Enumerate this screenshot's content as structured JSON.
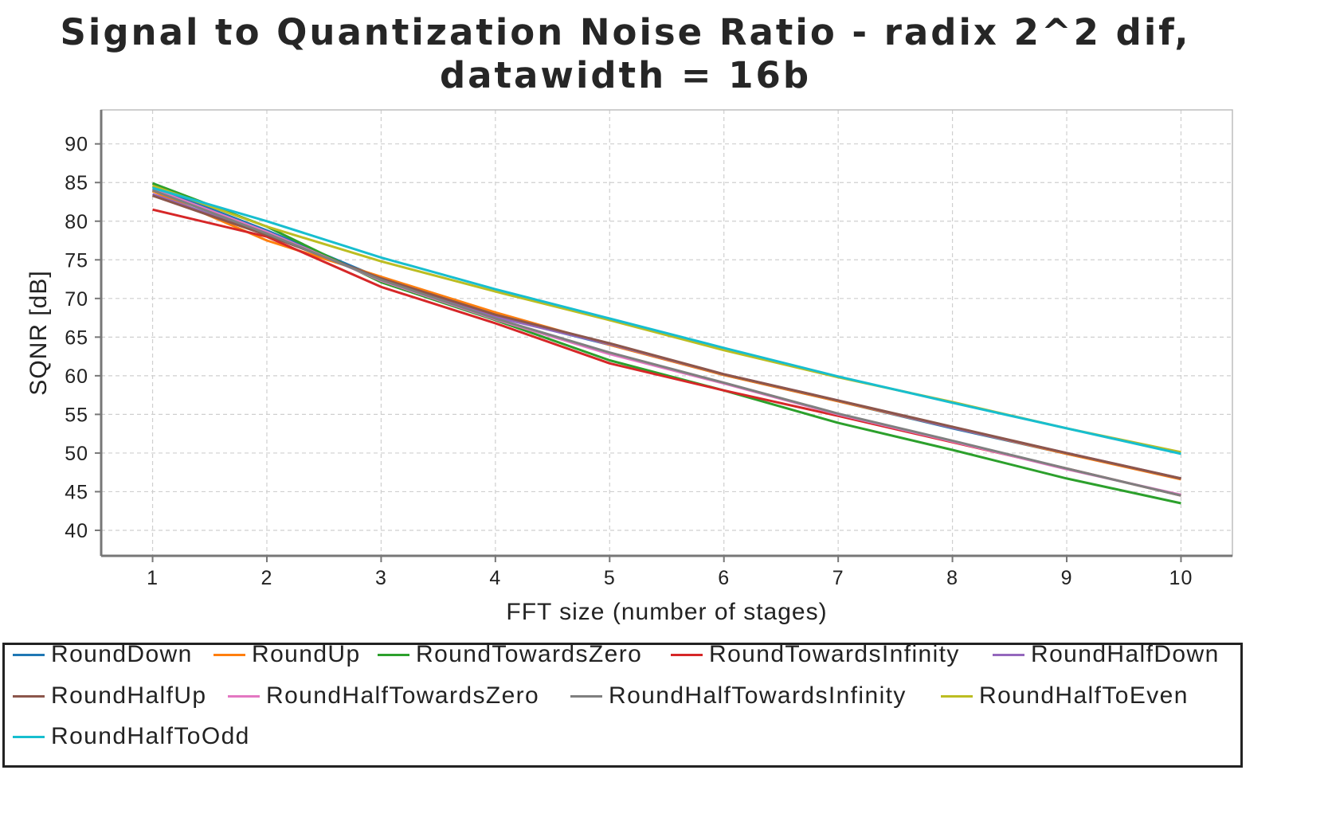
{
  "chart_data": {
    "type": "line",
    "title": [
      "Signal to Quantization Noise Ratio - radix 2^2 dif,",
      "datawidth = 16b"
    ],
    "xlabel": "FFT size (number of stages)",
    "ylabel": "SQNR [dB]",
    "x": [
      1,
      2,
      3,
      4,
      5,
      6,
      7,
      8,
      9,
      10
    ],
    "xlim": [
      0.55,
      10.45
    ],
    "ylim": [
      36.7,
      94.4
    ],
    "xticks": [
      1,
      2,
      3,
      4,
      5,
      6,
      7,
      8,
      9,
      10
    ],
    "yticks": [
      40,
      45,
      50,
      55,
      60,
      65,
      70,
      75,
      80,
      85,
      90
    ],
    "grid": true,
    "legend_position": "bottom",
    "series": [
      {
        "name": "RoundDown",
        "color": "#1f77b4",
        "values": [
          84.5,
          78.8,
          72.6,
          67.7,
          64.0,
          60.1,
          56.7,
          53.2,
          49.9,
          46.7
        ]
      },
      {
        "name": "RoundUp",
        "color": "#ff7f0e",
        "values": [
          83.9,
          77.5,
          72.8,
          68.2,
          64.0,
          60.1,
          56.7,
          53.3,
          49.9,
          46.6
        ]
      },
      {
        "name": "RoundTowardsZero",
        "color": "#2ca02c",
        "values": [
          84.9,
          79.3,
          72.1,
          67.2,
          62.0,
          58.1,
          53.9,
          50.4,
          46.7,
          43.5
        ]
      },
      {
        "name": "RoundTowardsInfinity",
        "color": "#d62728",
        "values": [
          81.5,
          78.0,
          71.5,
          66.8,
          61.6,
          58.1,
          54.8,
          51.4,
          48.0,
          44.5
        ]
      },
      {
        "name": "RoundHalfDown",
        "color": "#9467bd",
        "values": [
          83.5,
          78.3,
          72.5,
          67.6,
          64.1,
          60.2,
          56.8,
          53.3,
          50.0,
          46.7
        ]
      },
      {
        "name": "RoundHalfUp",
        "color": "#8c564b",
        "values": [
          83.3,
          78.2,
          72.6,
          67.9,
          64.2,
          60.2,
          56.8,
          53.4,
          50.0,
          46.7
        ]
      },
      {
        "name": "RoundHalfTowardsZero",
        "color": "#e377c2",
        "values": [
          84.2,
          78.6,
          72.3,
          67.3,
          62.8,
          59.0,
          55.0,
          51.5,
          47.9,
          44.6
        ]
      },
      {
        "name": "RoundHalfTowardsInfinity",
        "color": "#7f7f7f",
        "values": [
          84.0,
          78.4,
          72.4,
          67.4,
          63.0,
          59.1,
          55.1,
          51.6,
          48.0,
          44.5
        ]
      },
      {
        "name": "RoundHalfToEven",
        "color": "#bcbd22",
        "values": [
          84.6,
          79.3,
          74.8,
          70.9,
          67.2,
          63.3,
          59.8,
          56.6,
          53.2,
          50.1
        ]
      },
      {
        "name": "RoundHalfToOdd",
        "color": "#17becf",
        "values": [
          84.3,
          80.0,
          75.3,
          71.2,
          67.4,
          63.6,
          59.9,
          56.5,
          53.2,
          49.9
        ]
      }
    ]
  }
}
